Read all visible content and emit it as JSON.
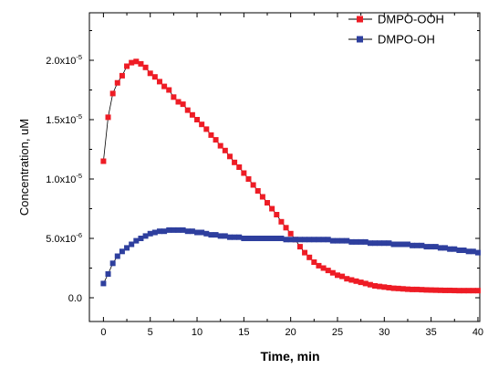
{
  "chart_data": {
    "type": "scatter",
    "title": "",
    "xlabel": "Time, min",
    "ylabel": "Concentration, uM",
    "xlim": [
      -1.5,
      40.2
    ],
    "ylim": [
      -2e-06,
      2.4e-05
    ],
    "x_ticks": [
      0,
      5,
      10,
      15,
      20,
      25,
      30,
      35,
      40
    ],
    "x_tick_labels": [
      "0",
      "5",
      "10",
      "15",
      "20",
      "25",
      "30",
      "35",
      "40"
    ],
    "y_ticks": [
      0,
      5e-06,
      1e-05,
      1.5e-05,
      2e-05
    ],
    "y_tick_labels": [
      {
        "base": "0.0",
        "exp": ""
      },
      {
        "base": "5.0x10",
        "exp": "-6"
      },
      {
        "base": "1.0x10",
        "exp": "-5"
      },
      {
        "base": "1.5x10",
        "exp": "-5"
      },
      {
        "base": "2.0x10",
        "exp": "-5"
      }
    ],
    "grid": false,
    "legend_position": "top-right",
    "x": [
      0,
      0.5,
      1,
      1.5,
      2,
      2.5,
      3,
      3.5,
      4,
      4.5,
      5,
      5.5,
      6,
      6.5,
      7,
      7.5,
      8,
      8.5,
      9,
      9.5,
      10,
      10.5,
      11,
      11.5,
      12,
      12.5,
      13,
      13.5,
      14,
      14.5,
      15,
      15.5,
      16,
      16.5,
      17,
      17.5,
      18,
      18.5,
      19,
      19.5,
      20,
      20.5,
      21,
      21.5,
      22,
      22.5,
      23,
      23.5,
      24,
      24.5,
      25,
      25.5,
      26,
      26.5,
      27,
      27.5,
      28,
      28.5,
      29,
      29.5,
      30,
      30.5,
      31,
      31.5,
      32,
      32.5,
      33,
      33.5,
      34,
      34.5,
      35,
      35.5,
      36,
      36.5,
      37,
      37.5,
      38,
      38.5,
      39,
      39.5,
      40
    ],
    "series": [
      {
        "name": "DMPO-OOH",
        "color": "#ee1c25",
        "values": [
          11.5,
          15.2,
          17.2,
          18.1,
          18.7,
          19.5,
          19.8,
          19.9,
          19.7,
          19.4,
          18.9,
          18.6,
          18.2,
          17.8,
          17.5,
          16.9,
          16.5,
          16.3,
          15.8,
          15.4,
          15.0,
          14.6,
          14.2,
          13.7,
          13.3,
          12.8,
          12.4,
          11.9,
          11.4,
          11.0,
          10.5,
          10.0,
          9.5,
          9.0,
          8.5,
          8.0,
          7.5,
          7.0,
          6.4,
          5.9,
          5.4,
          4.9,
          4.3,
          3.8,
          3.4,
          3.0,
          2.7,
          2.5,
          2.3,
          2.1,
          1.9,
          1.8,
          1.6,
          1.5,
          1.4,
          1.3,
          1.2,
          1.1,
          1.0,
          0.95,
          0.9,
          0.85,
          0.8,
          0.78,
          0.75,
          0.72,
          0.7,
          0.7,
          0.68,
          0.66,
          0.65,
          0.64,
          0.63,
          0.62,
          0.62,
          0.61,
          0.6,
          0.6,
          0.6,
          0.6,
          0.6
        ],
        "value_scale": 1e-06
      },
      {
        "name": "DMPO-OH",
        "color": "#2e3f9e",
        "values": [
          1.2,
          2.0,
          2.9,
          3.5,
          3.9,
          4.2,
          4.5,
          4.8,
          5.0,
          5.2,
          5.4,
          5.5,
          5.6,
          5.6,
          5.7,
          5.7,
          5.7,
          5.7,
          5.6,
          5.6,
          5.5,
          5.5,
          5.4,
          5.3,
          5.3,
          5.2,
          5.2,
          5.1,
          5.1,
          5.1,
          5.0,
          5.0,
          5.0,
          5.0,
          5.0,
          5.0,
          5.0,
          5.0,
          5.0,
          4.9,
          4.9,
          4.9,
          4.9,
          4.9,
          4.9,
          4.9,
          4.9,
          4.9,
          4.9,
          4.8,
          4.8,
          4.8,
          4.8,
          4.7,
          4.7,
          4.7,
          4.7,
          4.6,
          4.6,
          4.6,
          4.6,
          4.6,
          4.5,
          4.5,
          4.5,
          4.5,
          4.4,
          4.4,
          4.4,
          4.3,
          4.3,
          4.3,
          4.2,
          4.2,
          4.1,
          4.1,
          4.0,
          4.0,
          3.9,
          3.9,
          3.8
        ],
        "value_scale": 1e-06
      }
    ]
  }
}
